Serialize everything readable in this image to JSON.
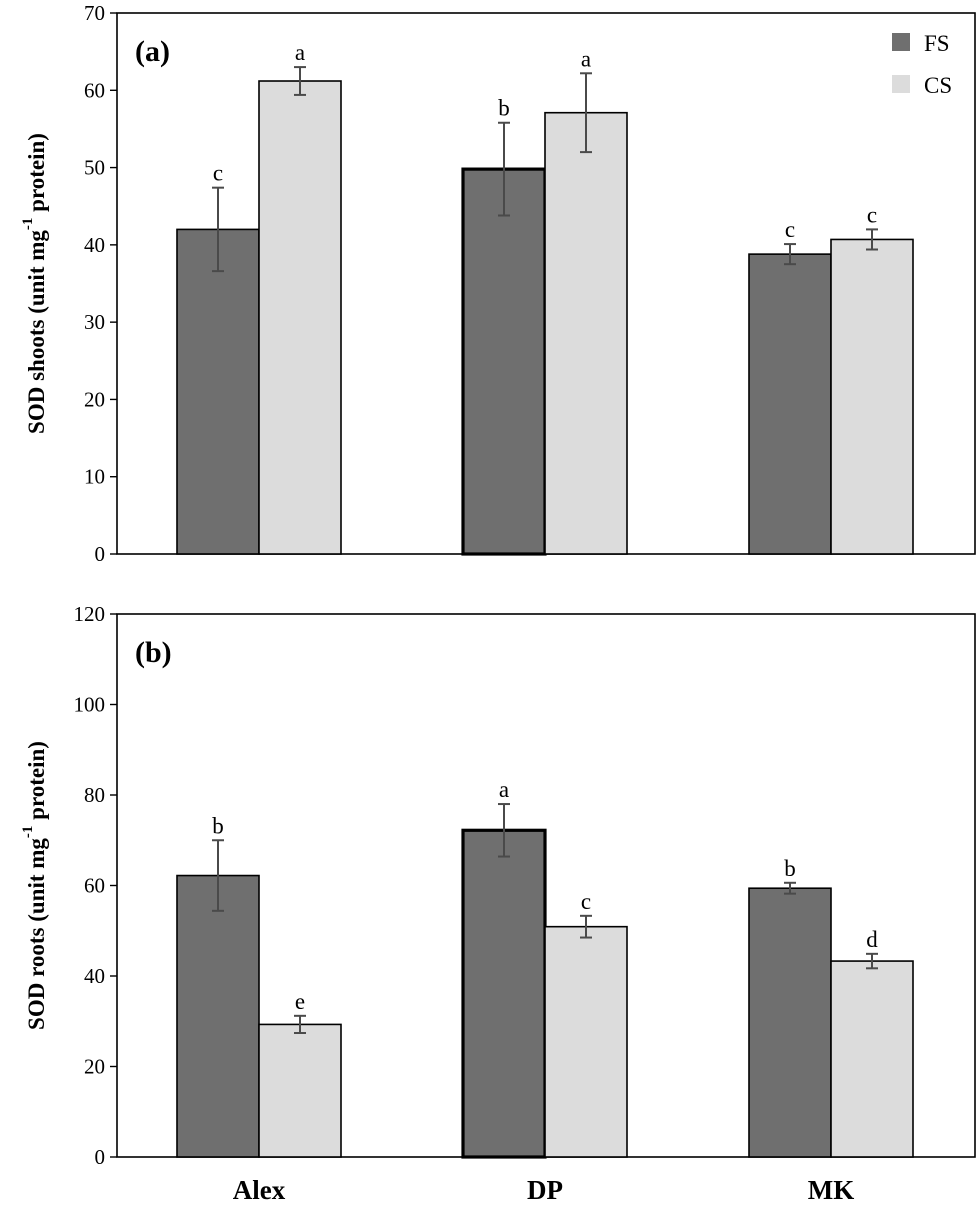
{
  "chart_data": [
    {
      "type": "bar",
      "panel_label": "(a)",
      "ylabel_parts": [
        "SOD shoots (unit mg",
        "-1",
        " protein)"
      ],
      "ylim": [
        0,
        70
      ],
      "yticks": [
        0,
        10,
        20,
        30,
        40,
        50,
        60,
        70
      ],
      "categories": [
        "Alex",
        "DP",
        "MK"
      ],
      "show_category_labels": false,
      "legend": {
        "position": "top-right",
        "entries": [
          "FS",
          "CS"
        ]
      },
      "series": [
        {
          "name": "FS",
          "color": "#6f6f6f",
          "values": [
            42,
            49.8,
            38.8
          ],
          "errors": [
            5.4,
            6.0,
            1.3
          ],
          "letters": [
            "c",
            "b",
            "c"
          ]
        },
        {
          "name": "CS",
          "color": "#dcdcdc",
          "values": [
            61.2,
            57.1,
            40.7
          ],
          "errors": [
            1.8,
            5.1,
            1.3
          ],
          "letters": [
            "a",
            "a",
            "c"
          ]
        }
      ]
    },
    {
      "type": "bar",
      "panel_label": "(b)",
      "ylabel_parts": [
        "SOD roots (unit mg",
        "-1",
        " protein)"
      ],
      "ylim": [
        0,
        120
      ],
      "yticks": [
        0,
        20,
        40,
        60,
        80,
        100,
        120
      ],
      "categories": [
        "Alex",
        "DP",
        "MK"
      ],
      "show_category_labels": true,
      "series": [
        {
          "name": "FS",
          "color": "#6f6f6f",
          "values": [
            62.2,
            72.2,
            59.4
          ],
          "errors": [
            7.8,
            5.8,
            1.2
          ],
          "letters": [
            "b",
            "a",
            "b"
          ]
        },
        {
          "name": "CS",
          "color": "#dcdcdc",
          "values": [
            29.3,
            50.9,
            43.3
          ],
          "errors": [
            1.9,
            2.4,
            1.6
          ],
          "letters": [
            "e",
            "c",
            "d"
          ]
        }
      ]
    }
  ]
}
